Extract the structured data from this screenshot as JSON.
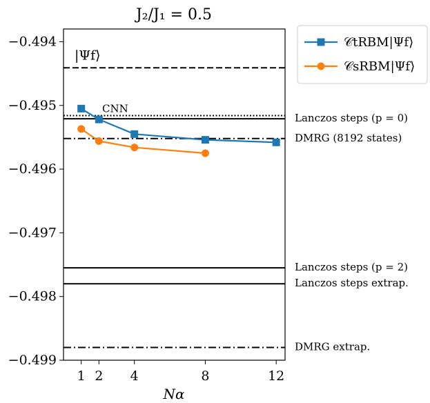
{
  "chart_data": {
    "type": "line",
    "title": "J₂/J₁ = 0.5",
    "xlabel": "Nα",
    "ylabel": "",
    "xlim": [
      0,
      12.5
    ],
    "ylim": [
      -0.499,
      -0.4938
    ],
    "x_ticks": [
      1,
      2,
      4,
      8,
      12
    ],
    "x_tick_labels": [
      "1",
      "2",
      "4",
      "8",
      "12"
    ],
    "y_ticks": [
      -0.494,
      -0.495,
      -0.496,
      -0.497,
      -0.498,
      -0.499
    ],
    "y_tick_labels": [
      "−0.494",
      "−0.495",
      "−0.496",
      "−0.497",
      "−0.498",
      "−0.499"
    ],
    "series": [
      {
        "name": "𝒞tRBM|Ψf⟩",
        "color": "#1f77b4",
        "marker": "square",
        "x": [
          1,
          2,
          4,
          8,
          12
        ],
        "y": [
          -0.49505,
          -0.49522,
          -0.49545,
          -0.49554,
          -0.49558
        ]
      },
      {
        "name": "𝒞sRBM|Ψf⟩",
        "color": "#ff7f0e",
        "marker": "circle",
        "x": [
          1,
          2,
          4,
          8
        ],
        "y": [
          -0.49537,
          -0.49556,
          -0.49566,
          -0.49575
        ]
      }
    ],
    "reference_lines": [
      {
        "label": "|Ψf⟩",
        "y": -0.49441,
        "style": "dashed",
        "position": "inside-left"
      },
      {
        "label": "CNN",
        "y": -0.49516,
        "style": "dotted",
        "position": "inside-left"
      },
      {
        "label": "Lanczos steps (p = 0)",
        "y": -0.49521,
        "style": "solid",
        "position": "right"
      },
      {
        "label": "DMRG (8192 states)",
        "y": -0.49552,
        "style": "dashdot",
        "position": "right"
      },
      {
        "label": "Lanczos steps (p = 2)",
        "y": -0.49755,
        "style": "solid",
        "position": "right"
      },
      {
        "label": "Lanczos steps extrap.",
        "y": -0.4978,
        "style": "solid",
        "position": "right"
      },
      {
        "label": "DMRG extrap.",
        "y": -0.4988,
        "style": "dashdot",
        "position": "right"
      }
    ],
    "legend": {
      "placement": "outside-top-right"
    },
    "grid": false
  }
}
